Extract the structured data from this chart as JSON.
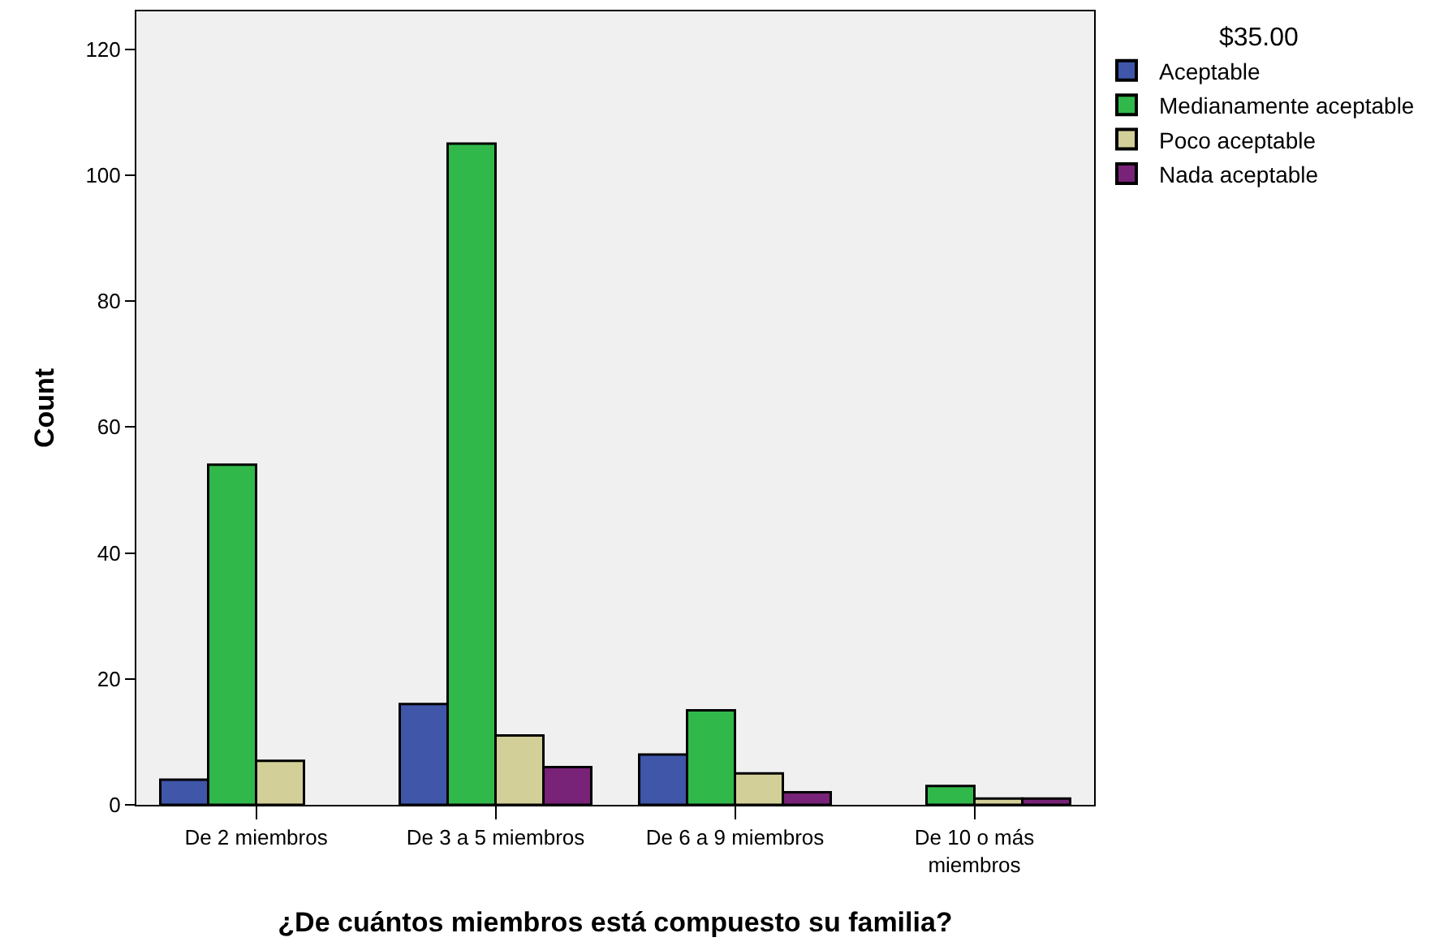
{
  "chart_data": {
    "type": "bar",
    "xlabel": "¿De cuántos miembros está compuesto su familia?",
    "ylabel": "Count",
    "legend_title": "$35.00",
    "categories": [
      "De 2 miembros",
      "De 3 a 5 miembros",
      "De 6 a 9 miembros",
      "De 10 o más miembros"
    ],
    "series": [
      {
        "name": "Aceptable",
        "color": "#3f56a9",
        "values": [
          4,
          16,
          8,
          null
        ]
      },
      {
        "name": "Medianamente aceptable",
        "color": "#30b84a",
        "values": [
          54,
          105,
          15,
          3
        ]
      },
      {
        "name": "Poco aceptable",
        "color": "#d3cf98",
        "values": [
          7,
          11,
          5,
          1
        ]
      },
      {
        "name": "Nada aceptable",
        "color": "#782278",
        "values": [
          null,
          6,
          2,
          1
        ]
      }
    ],
    "ylim": [
      0,
      126
    ],
    "yticks": [
      0,
      20,
      40,
      60,
      80,
      100,
      120
    ],
    "grid": false,
    "legend": "top right"
  }
}
